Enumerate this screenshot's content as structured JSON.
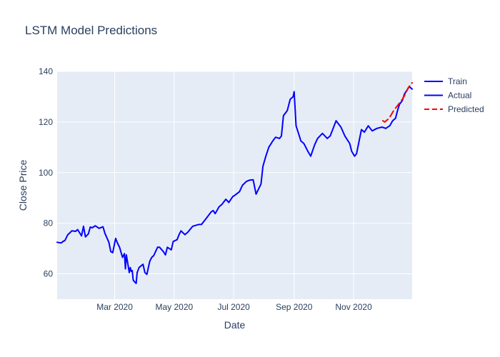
{
  "chart_data": {
    "type": "line",
    "title": "LSTM Model Predictions",
    "xlabel": "Date",
    "ylabel": "Close Price",
    "xlim": [
      "2020-01-02",
      "2020-12-31"
    ],
    "ylim": [
      50,
      140
    ],
    "x_ticks": [
      {
        "date": "2020-03-01",
        "label": "Mar 2020"
      },
      {
        "date": "2020-05-01",
        "label": "May 2020"
      },
      {
        "date": "2020-07-01",
        "label": "Jul 2020"
      },
      {
        "date": "2020-09-01",
        "label": "Sep 2020"
      },
      {
        "date": "2020-11-01",
        "label": "Nov 2020"
      }
    ],
    "y_ticks": [
      60,
      80,
      100,
      120,
      140
    ],
    "grid": true,
    "legend_position": "top-right",
    "series": [
      {
        "name": "Train",
        "color": "#0000ff",
        "dash": "solid",
        "x": [
          "2020-01-02",
          "2020-01-06",
          "2020-01-08",
          "2020-01-10",
          "2020-01-13",
          "2020-01-15",
          "2020-01-17",
          "2020-01-21",
          "2020-01-23",
          "2020-01-27",
          "2020-01-29",
          "2020-01-31",
          "2020-02-03",
          "2020-02-05",
          "2020-02-07",
          "2020-02-10",
          "2020-02-12",
          "2020-02-14",
          "2020-02-18",
          "2020-02-20",
          "2020-02-24",
          "2020-02-26",
          "2020-02-28",
          "2020-03-02",
          "2020-03-04",
          "2020-03-06",
          "2020-03-09",
          "2020-03-11",
          "2020-03-12",
          "2020-03-13",
          "2020-03-16",
          "2020-03-17",
          "2020-03-18",
          "2020-03-19",
          "2020-03-20",
          "2020-03-23",
          "2020-03-24",
          "2020-03-26",
          "2020-03-30",
          "2020-04-01",
          "2020-04-03",
          "2020-04-06",
          "2020-04-08",
          "2020-04-10",
          "2020-04-14",
          "2020-04-16",
          "2020-04-20",
          "2020-04-22",
          "2020-04-24",
          "2020-04-28",
          "2020-04-30",
          "2020-05-04",
          "2020-05-06",
          "2020-05-08",
          "2020-05-12",
          "2020-05-15",
          "2020-05-20",
          "2020-05-26",
          "2020-05-29",
          "2020-06-03",
          "2020-06-08",
          "2020-06-10",
          "2020-06-12",
          "2020-06-16",
          "2020-06-19",
          "2020-06-23",
          "2020-06-26",
          "2020-06-30",
          "2020-07-02",
          "2020-07-07",
          "2020-07-10",
          "2020-07-14",
          "2020-07-17",
          "2020-07-21",
          "2020-07-24",
          "2020-07-29",
          "2020-07-31",
          "2020-08-03",
          "2020-08-06",
          "2020-08-10",
          "2020-08-13",
          "2020-08-17",
          "2020-08-19",
          "2020-08-21",
          "2020-08-25",
          "2020-08-28",
          "2020-08-31",
          "2020-09-01",
          "2020-09-03",
          "2020-09-08",
          "2020-09-11",
          "2020-09-15",
          "2020-09-18",
          "2020-09-22",
          "2020-09-25",
          "2020-09-30",
          "2020-10-05",
          "2020-10-08",
          "2020-10-12",
          "2020-10-14",
          "2020-10-19",
          "2020-10-23",
          "2020-10-28",
          "2020-10-30",
          "2020-11-02",
          "2020-11-04",
          "2020-11-09",
          "2020-11-12",
          "2020-11-16",
          "2020-11-20",
          "2020-11-25",
          "2020-11-30",
          "2020-12-04"
        ],
        "y": [
          72.5,
          72.2,
          72.8,
          73.2,
          75.5,
          76.2,
          77.0,
          76.8,
          77.5,
          75.0,
          78.8,
          74.6,
          75.8,
          78.5,
          78.2,
          79.0,
          78.5,
          78.0,
          78.6,
          76.0,
          72.5,
          68.8,
          68.4,
          74.0,
          72.0,
          70.5,
          66.5,
          68.0,
          62.0,
          67.5,
          60.5,
          62.5,
          61.0,
          61.3,
          57.5,
          56.2,
          60.5,
          62.5,
          63.8,
          60.5,
          59.8,
          65.0,
          66.5,
          67.2,
          70.5,
          70.5,
          68.8,
          67.5,
          70.5,
          69.5,
          72.8,
          73.5,
          75.5,
          77.0,
          75.5,
          76.5,
          78.8,
          79.5,
          79.5,
          82.0,
          84.5,
          85.0,
          83.8,
          86.5,
          87.5,
          89.5,
          88.2,
          90.5,
          91.0,
          92.5,
          95.0,
          96.5,
          97.0,
          97.2,
          91.5,
          95.5,
          102.5,
          106.5,
          110.0,
          112.5,
          114.0,
          113.5,
          114.5,
          122.5,
          124.5,
          129.0,
          130.0,
          132.0,
          118.5,
          112.5,
          111.5,
          108.5,
          106.5,
          111.0,
          113.5,
          115.5,
          113.5,
          114.5,
          118.5,
          120.5,
          118.0,
          114.5,
          111.5,
          108.5,
          106.5,
          107.5,
          117.0,
          116.0,
          118.5,
          116.5,
          117.5,
          118.0,
          117.5
        ]
      },
      {
        "name": "Actual",
        "color": "#0000ff",
        "dash": "solid",
        "x": [
          "2020-12-04",
          "2020-12-08",
          "2020-12-11",
          "2020-12-14",
          "2020-12-16",
          "2020-12-18",
          "2020-12-21",
          "2020-12-23",
          "2020-12-28",
          "2020-12-31"
        ],
        "y": [
          117.5,
          118.5,
          120.5,
          121.5,
          124.5,
          127.0,
          128.5,
          131.0,
          134.0,
          133.0
        ]
      },
      {
        "name": "Predicted",
        "color": "#ff0000",
        "dash": "dash",
        "x": [
          "2020-12-01",
          "2020-12-03",
          "2020-12-06",
          "2020-12-09",
          "2020-12-12",
          "2020-12-15",
          "2020-12-18",
          "2020-12-21",
          "2020-12-24",
          "2020-12-27",
          "2020-12-31"
        ],
        "y": [
          120.5,
          120.0,
          121.0,
          122.5,
          124.5,
          126.0,
          127.5,
          129.0,
          131.0,
          133.5,
          135.5
        ]
      }
    ]
  }
}
